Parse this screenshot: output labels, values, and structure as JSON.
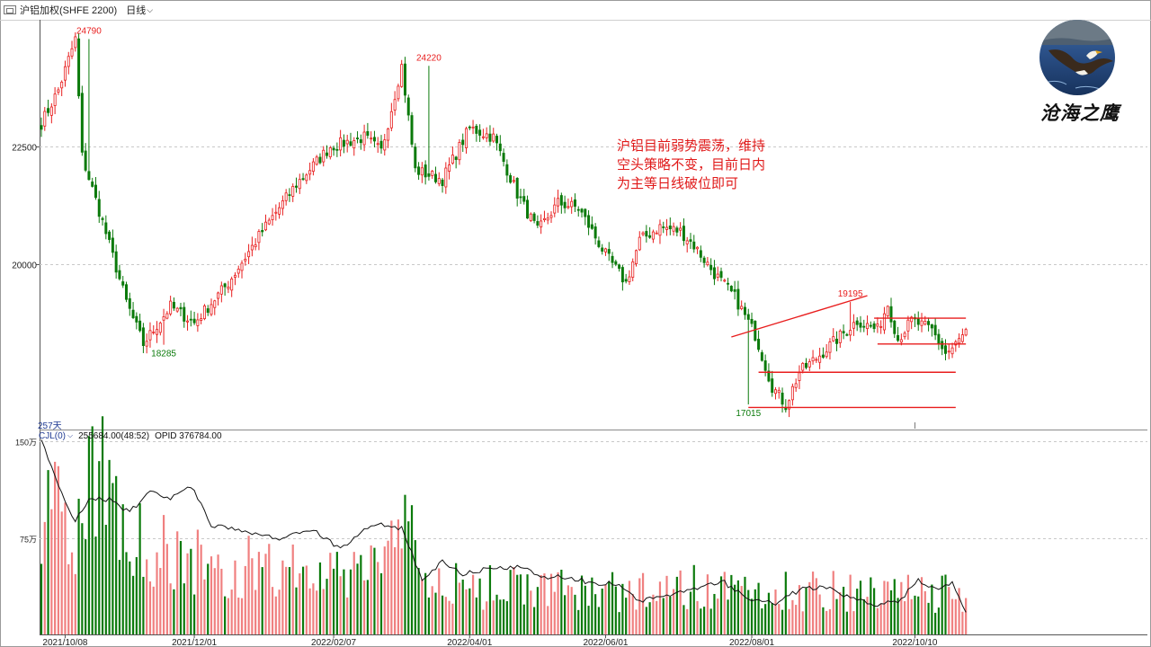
{
  "toolbar": {
    "symbol": "沪铝加权(SHFE 2200)",
    "period": "日线",
    "window_icon": "window-icon",
    "period_caret_icon": "chevron-down-icon"
  },
  "brand": {
    "name": "沧海之鹰",
    "avatar_icon": "eagle-avatar-icon"
  },
  "annotation": {
    "lines": [
      "沪铝目前弱势震荡，维持",
      "空头策略不变，目前日内",
      "为主等日线破位即可"
    ]
  },
  "bar_count_label": "257天",
  "volume_header": {
    "indicator": "CJL(0)",
    "indicator_caret_icon": "chevron-down-icon",
    "volume": "255684.00(48:52)",
    "opid": "OPID 376784.00"
  },
  "colors": {
    "up": "#e81d1d",
    "down": "#0b7a0b",
    "vol_up": "#f08080",
    "grid": "#c8c8c8",
    "axis": "#555555",
    "annotation": "#e01a1a"
  },
  "chart_data": [
    {
      "type": "candlestick",
      "ylim": [
        16500,
        25200
      ],
      "yticks": [
        {
          "value": 22500,
          "label": "22500"
        },
        {
          "value": 20000,
          "label": "20000"
        }
      ],
      "price_labels": [
        {
          "label": "24790",
          "value": 24790,
          "date": "2021-10-18",
          "kind": "high"
        },
        {
          "label": "24220",
          "value": 24220,
          "date": "2022-03-07",
          "kind": "high"
        },
        {
          "label": "18285",
          "value": 18285,
          "date": "2021-11-17",
          "kind": "low"
        },
        {
          "label": "17015",
          "value": 17015,
          "date": "2022-07-15",
          "kind": "low"
        },
        {
          "label": "19195",
          "value": 19195,
          "date": "2022-08-26",
          "kind": "high"
        }
      ],
      "trendlines": [
        {
          "from": {
            "date": "2022-07-08",
            "value": 18450
          },
          "to": {
            "date": "2022-09-02",
            "value": 19330
          }
        },
        {
          "from": {
            "date": "2022-07-20",
            "value": 17700
          },
          "to": {
            "date": "2022-10-10",
            "value": 17700
          }
        },
        {
          "from": {
            "date": "2022-07-15",
            "value": 16950
          },
          "to": {
            "date": "2022-10-10",
            "value": 16950
          }
        },
        {
          "from": {
            "date": "2022-09-06",
            "value": 18850
          },
          "to": {
            "date": "2022-10-25",
            "value": 18850
          }
        },
        {
          "from": {
            "date": "2022-09-07",
            "value": 18300
          },
          "to": {
            "date": "2022-10-18",
            "value": 18300
          }
        }
      ],
      "path": [
        [
          0,
          23000
        ],
        [
          5,
          23700
        ],
        [
          10,
          24790
        ],
        [
          12,
          22300
        ],
        [
          18,
          20900
        ],
        [
          25,
          19200
        ],
        [
          30,
          18300
        ],
        [
          38,
          19100
        ],
        [
          45,
          18750
        ],
        [
          55,
          19600
        ],
        [
          65,
          20700
        ],
        [
          75,
          21700
        ],
        [
          85,
          22500
        ],
        [
          95,
          22700
        ],
        [
          100,
          22400
        ],
        [
          106,
          24220
        ],
        [
          110,
          22000
        ],
        [
          118,
          21800
        ],
        [
          126,
          22900
        ],
        [
          133,
          22700
        ],
        [
          140,
          21500
        ],
        [
          146,
          20700
        ],
        [
          152,
          21300
        ],
        [
          158,
          21200
        ],
        [
          166,
          20200
        ],
        [
          172,
          19600
        ],
        [
          176,
          20500
        ],
        [
          182,
          20800
        ],
        [
          188,
          20700
        ],
        [
          192,
          20400
        ],
        [
          198,
          19800
        ],
        [
          204,
          19300
        ],
        [
          210,
          18500
        ],
        [
          215,
          17400
        ],
        [
          219,
          17000
        ],
        [
          223,
          17700
        ],
        [
          228,
          18000
        ],
        [
          234,
          18400
        ],
        [
          240,
          18800
        ],
        [
          246,
          18600
        ],
        [
          249,
          19150
        ],
        [
          252,
          18400
        ],
        [
          256,
          18800
        ],
        [
          262,
          18600
        ],
        [
          266,
          18100
        ],
        [
          268,
          18200
        ],
        [
          272,
          18550
        ]
      ],
      "date_axis": [
        {
          "label": "2021/10/08",
          "idx": 7
        },
        {
          "label": "2021/12/01",
          "idx": 45
        },
        {
          "label": "2022/02/07",
          "idx": 86
        },
        {
          "label": "2022/04/01",
          "idx": 126
        },
        {
          "label": "2022/06/01",
          "idx": 166
        },
        {
          "label": "2022/08/01",
          "idx": 209
        },
        {
          "label": "2022/10/10",
          "idx": 257
        }
      ]
    },
    {
      "type": "bar",
      "name": "CJL",
      "ylim": [
        0,
        1500000
      ],
      "yticks": [
        {
          "value": 1500000,
          "label": "150万"
        },
        {
          "value": 750000,
          "label": "75万"
        }
      ],
      "volume_anchor": [
        [
          0,
          1200000
        ],
        [
          8,
          900000
        ],
        [
          12,
          1000000
        ],
        [
          16,
          1400000
        ],
        [
          22,
          1200000
        ],
        [
          30,
          800000
        ],
        [
          45,
          650000
        ],
        [
          60,
          600000
        ],
        [
          80,
          520000
        ],
        [
          100,
          560000
        ],
        [
          106,
          1100000
        ],
        [
          112,
          450000
        ],
        [
          130,
          420000
        ],
        [
          150,
          400000
        ],
        [
          170,
          380000
        ],
        [
          190,
          420000
        ],
        [
          210,
          390000
        ],
        [
          230,
          400000
        ],
        [
          250,
          360000
        ],
        [
          272,
          380000
        ]
      ],
      "oi_line": [
        [
          0,
          1500000
        ],
        [
          5,
          1150000
        ],
        [
          10,
          880000
        ],
        [
          14,
          1050000
        ],
        [
          20,
          1050000
        ],
        [
          26,
          950000
        ],
        [
          32,
          1100000
        ],
        [
          38,
          1050000
        ],
        [
          44,
          1150000
        ],
        [
          50,
          850000
        ],
        [
          60,
          790000
        ],
        [
          70,
          750000
        ],
        [
          80,
          820000
        ],
        [
          88,
          660000
        ],
        [
          95,
          820000
        ],
        [
          100,
          850000
        ],
        [
          106,
          820000
        ],
        [
          112,
          430000
        ],
        [
          118,
          560000
        ],
        [
          124,
          470000
        ],
        [
          130,
          500000
        ],
        [
          140,
          520000
        ],
        [
          148,
          450000
        ],
        [
          156,
          440000
        ],
        [
          162,
          400000
        ],
        [
          170,
          390000
        ],
        [
          176,
          260000
        ],
        [
          184,
          300000
        ],
        [
          192,
          350000
        ],
        [
          200,
          420000
        ],
        [
          208,
          270000
        ],
        [
          216,
          240000
        ],
        [
          224,
          360000
        ],
        [
          232,
          370000
        ],
        [
          238,
          280000
        ],
        [
          246,
          230000
        ],
        [
          252,
          250000
        ],
        [
          258,
          420000
        ],
        [
          264,
          340000
        ],
        [
          268,
          420000
        ],
        [
          272,
          180000
        ]
      ]
    }
  ]
}
